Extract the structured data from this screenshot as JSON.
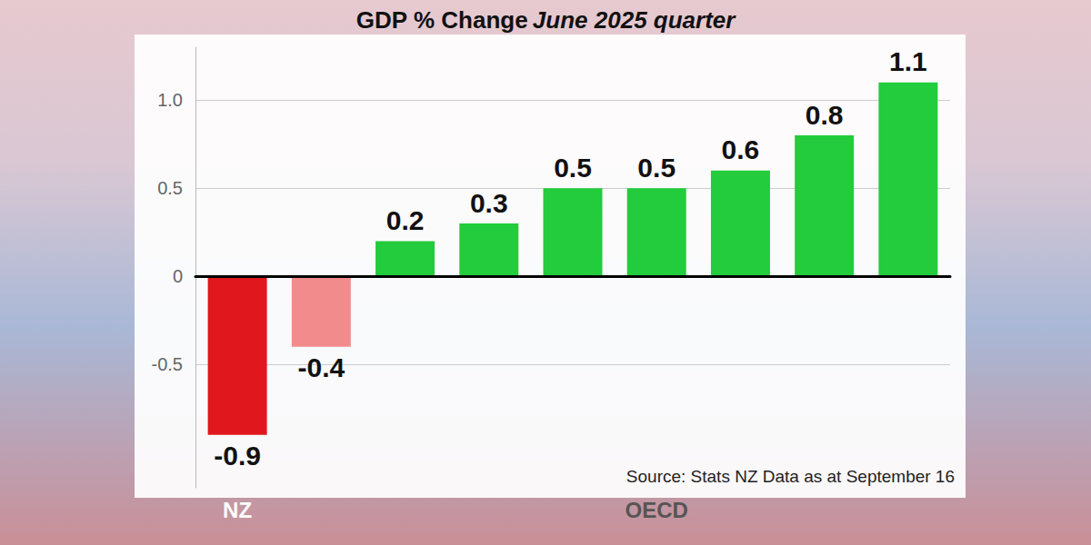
{
  "chart_data": {
    "type": "bar",
    "title": "GDP % Change",
    "subtitle": "June 2025 quarter",
    "categories": [
      "NZ",
      null,
      null,
      null,
      null,
      "OECD",
      null,
      null,
      null
    ],
    "values": [
      -0.9,
      -0.4,
      0.2,
      0.3,
      0.5,
      0.5,
      0.6,
      0.8,
      1.1
    ],
    "colors": [
      "#e0181e",
      "#f28c8c",
      "#22cc3c",
      "#22cc3c",
      "#22cc3c",
      "#22cc3c",
      "#22cc3c",
      "#22cc3c",
      "#22cc3c"
    ],
    "ylim": [
      -1.2,
      1.3
    ],
    "yticks": [
      -0.5,
      0,
      0.5,
      {
        "value": 1,
        "label": "1.0"
      }
    ],
    "grid": true,
    "data_labels": true,
    "annotations": [
      "Source: Stats NZ Data as at September 16"
    ]
  }
}
